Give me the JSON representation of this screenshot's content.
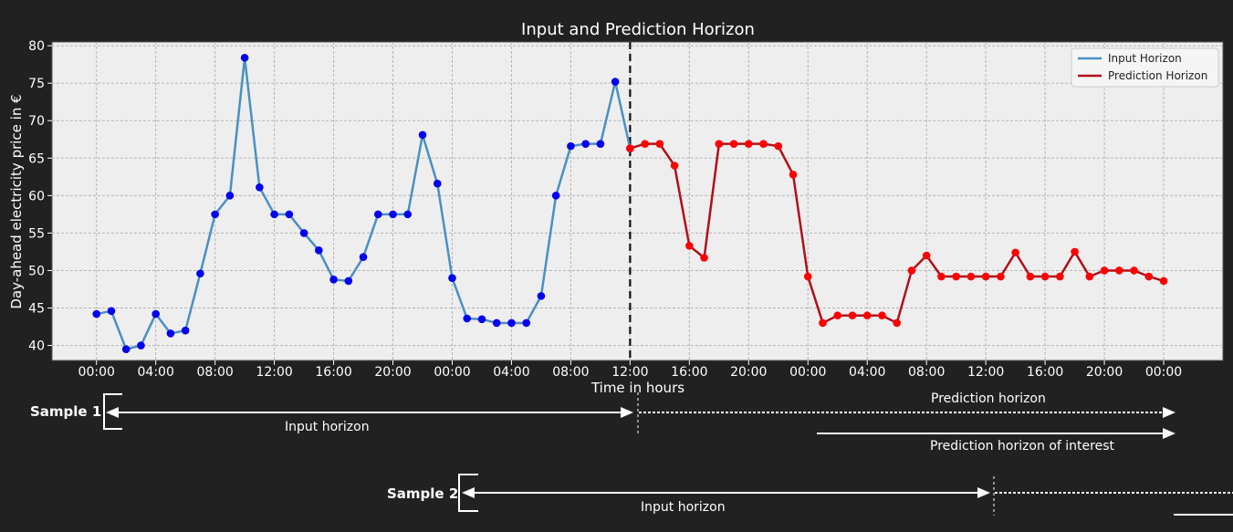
{
  "chart_data": {
    "type": "line",
    "title": "Input and Prediction Horizon",
    "xlabel": "Time in hours",
    "ylabel": "Day-ahead electricity price in €",
    "ylim": [
      38,
      80.5
    ],
    "y_ticks": [
      40,
      45,
      50,
      55,
      60,
      65,
      70,
      75,
      80
    ],
    "x_tick_labels": [
      "00:00",
      "04:00",
      "08:00",
      "12:00",
      "16:00",
      "20:00",
      "00:00",
      "04:00",
      "08:00",
      "12:00",
      "16:00",
      "20:00",
      "00:00",
      "04:00",
      "08:00",
      "12:00",
      "16:00",
      "20:00",
      "00:00"
    ],
    "x_unit": "hours since first 00:00",
    "x_range": [
      -3,
      76
    ],
    "grid": true,
    "legend_position": "top-right",
    "split_hour": 36,
    "series": [
      {
        "name": "Input Horizon",
        "line_color": "#4a90c2",
        "marker_color": "#0000ee",
        "x_start": 0,
        "values": [
          44.2,
          44.6,
          39.5,
          40.0,
          44.2,
          41.6,
          42.0,
          49.6,
          57.5,
          60.0,
          78.4,
          61.1,
          57.5,
          57.5,
          55.0,
          52.7,
          48.8,
          48.6,
          51.8,
          57.5,
          57.5,
          57.5,
          68.1,
          61.6,
          49.0,
          43.6,
          43.5,
          43.0,
          43.0,
          43.0,
          46.6,
          60.0,
          66.6,
          66.9,
          66.9,
          75.2,
          66.3
        ]
      },
      {
        "name": "Prediction Horizon",
        "line_color": "#b0101c",
        "marker_color": "#ff0000",
        "x_start": 36,
        "values": [
          66.3,
          66.9,
          66.9,
          64.0,
          53.3,
          51.7,
          66.9,
          66.9,
          66.9,
          66.9,
          66.6,
          62.8,
          49.2,
          43.0,
          44.0,
          44.0,
          44.0,
          44.0,
          43.0,
          50.0,
          52.0,
          49.2,
          49.2,
          49.2,
          49.2,
          49.2,
          52.4,
          49.2,
          49.2,
          49.2,
          52.5,
          49.2,
          50.0,
          50.0,
          50.0,
          49.2,
          48.6
        ]
      }
    ]
  },
  "annotations": {
    "sample1_label": "Sample 1",
    "sample2_label": "Sample 2",
    "input_horizon_1": "Input horizon",
    "input_horizon_2": "Input horizon",
    "prediction_horizon": "Prediction horizon",
    "prediction_horizon_interest": "Prediction horizon of interest"
  },
  "colors": {
    "background": "#212121",
    "plot_background": "#eeeeee",
    "grid": "#b5b5b5",
    "split_line": "#111111"
  }
}
